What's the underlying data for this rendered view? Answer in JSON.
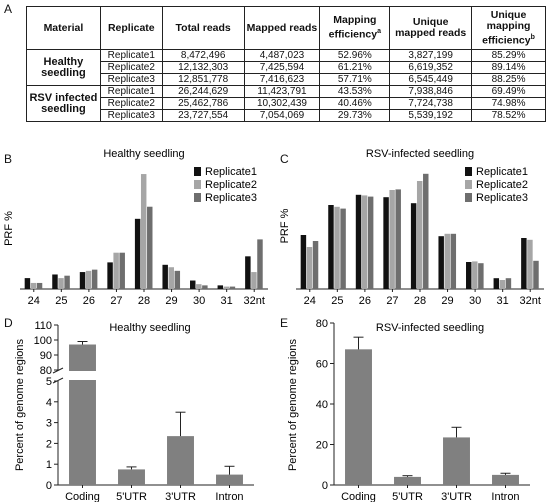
{
  "panel_labels": {
    "a": "A",
    "b": "B",
    "c": "C",
    "d": "D",
    "e": "E"
  },
  "table": {
    "headers": [
      "Material",
      "Replicate",
      "Total reads",
      "Mapped reads",
      "Mapping efficiency",
      "Unique mapped reads",
      "Unique mapping efficiency"
    ],
    "header_superscripts": {
      "mapping": "a",
      "unique_mapping": "b"
    },
    "groups": [
      {
        "name_line1": "Healthy",
        "name_line2": "seedling",
        "rows": [
          [
            "Replicate1",
            "8,472,496",
            "4,487,023",
            "52.96%",
            "3,827,199",
            "85.29%"
          ],
          [
            "Replicate2",
            "12,132,303",
            "7,425,594",
            "61.21%",
            "6,619,352",
            "89.14%"
          ],
          [
            "Replicate3",
            "12,851,778",
            "7,416,623",
            "57.71%",
            "6,545,449",
            "88.25%"
          ]
        ]
      },
      {
        "name_line1": "RSV infected",
        "name_line2": "seedling",
        "rows": [
          [
            "Replicate1",
            "26,244,629",
            "11,423,791",
            "43.53%",
            "7,938,846",
            "69.49%"
          ],
          [
            "Replicate2",
            "25,462,786",
            "10,302,439",
            "40.46%",
            "7,724,738",
            "74.98%"
          ],
          [
            "Replicate3",
            "23,727,554",
            "7,054,069",
            "29.73%",
            "5,539,192",
            "78.52%"
          ]
        ]
      }
    ]
  },
  "colors": {
    "replicate1": "#111111",
    "replicate2": "#a6a6a6",
    "replicate3": "#6e6e6e",
    "bar": "#808080",
    "axis": "#222222"
  },
  "chart_data": [
    {
      "id": "B",
      "type": "bar",
      "title": "Healthy seedling",
      "ylabel": "PRF %",
      "xlabel": "",
      "categories": [
        "24",
        "25",
        "26",
        "27",
        "28",
        "29",
        "30",
        "31",
        "32nt"
      ],
      "ylim": [
        0,
        50
      ],
      "series": [
        {
          "name": "Replicate1",
          "values": [
            4.5,
            6.0,
            7.0,
            11.0,
            29.0,
            10.0,
            3.5,
            1.5,
            13.5
          ]
        },
        {
          "name": "Replicate2",
          "values": [
            2.5,
            4.5,
            7.5,
            15.0,
            47.5,
            9.0,
            2.0,
            1.0,
            7.0
          ]
        },
        {
          "name": "Replicate3",
          "values": [
            2.5,
            5.5,
            8.0,
            15.0,
            34.0,
            7.5,
            1.5,
            1.0,
            20.5
          ]
        }
      ],
      "legend": "top-right"
    },
    {
      "id": "C",
      "type": "bar",
      "title": "RSV-infected seedling",
      "ylabel": "PRF %",
      "xlabel": "",
      "categories": [
        "24",
        "25",
        "26",
        "27",
        "28",
        "29",
        "30",
        "31",
        "32nt"
      ],
      "ylim": [
        0,
        21
      ],
      "series": [
        {
          "name": "Replicate1",
          "values": [
            9.0,
            14.0,
            15.7,
            15.3,
            14.3,
            8.8,
            4.5,
            1.8,
            8.5
          ]
        },
        {
          "name": "Replicate2",
          "values": [
            7.0,
            13.7,
            15.6,
            16.5,
            18.0,
            9.2,
            4.6,
            1.5,
            8.2
          ]
        },
        {
          "name": "Replicate3",
          "values": [
            8.0,
            13.4,
            15.4,
            16.6,
            19.2,
            9.2,
            4.3,
            1.8,
            4.7
          ]
        }
      ],
      "legend": "top-right"
    },
    {
      "id": "D",
      "type": "bar",
      "title": "Healthy seedling",
      "ylabel": "Percent of genome regions",
      "xlabel": "",
      "categories": [
        "Coding",
        "5'UTR",
        "3'UTR",
        "Intron"
      ],
      "values": [
        97,
        0.75,
        2.35,
        0.5
      ],
      "errors": [
        2,
        0.12,
        1.15,
        0.4
      ],
      "y_axis_break": true,
      "lower_ticks": [
        0,
        1,
        2,
        3,
        4,
        5
      ],
      "upper_ticks": [
        80,
        90,
        100,
        110
      ],
      "ylim_lower": [
        0,
        5
      ],
      "ylim_upper": [
        80,
        110
      ]
    },
    {
      "id": "E",
      "type": "bar",
      "title": "RSV-infected seedling",
      "ylabel": "Percent of genome regions",
      "xlabel": "",
      "categories": [
        "Coding",
        "5'UTR",
        "3'UTR",
        "Intron"
      ],
      "values": [
        67,
        4,
        23.5,
        5
      ],
      "errors": [
        6,
        0.6,
        5,
        0.8
      ],
      "ylim": [
        0,
        80
      ],
      "ticks": [
        0,
        20,
        40,
        60,
        80
      ]
    }
  ]
}
